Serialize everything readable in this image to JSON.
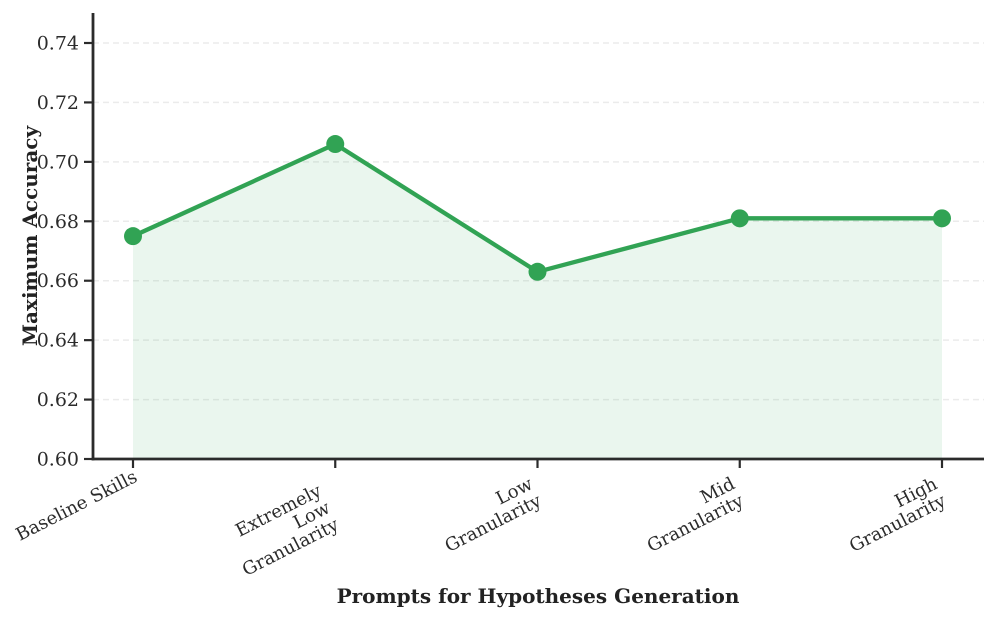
{
  "chart_data": {
    "type": "line",
    "title": "",
    "xlabel": "Prompts for Hypotheses Generation",
    "ylabel": "Maximum Accuracy",
    "categories": [
      "Baseline Skills",
      "Extremely Low Granularity",
      "Low Granularity",
      "Mid Granularity",
      "High Granularity"
    ],
    "category_label_lines": [
      [
        "Baseline Skills"
      ],
      [
        "Extremely",
        "Low",
        "Granularity"
      ],
      [
        "Low",
        "Granularity"
      ],
      [
        "Mid",
        "Granularity"
      ],
      [
        "High",
        "Granularity"
      ]
    ],
    "series": [
      {
        "name": "Maximum Accuracy",
        "values": [
          0.675,
          0.706,
          0.663,
          0.681,
          0.681
        ]
      }
    ],
    "ylim": [
      0.6,
      0.75
    ],
    "yticks": [
      0.6,
      0.62,
      0.64,
      0.66,
      0.68,
      0.7,
      0.72,
      0.74
    ],
    "ytick_format_decimals": 2,
    "grid": true,
    "grid_style": "dashed",
    "legend": false,
    "marker": "circle",
    "area_fill": true,
    "style": {
      "line_color": "#31a354",
      "marker_color": "#31a354",
      "fill_color": "rgba(49, 163, 84, 0.10)",
      "grid_color": "#ebebeb",
      "axis_color": "#2b2b2b",
      "tick_text_color": "#2b2b2b",
      "label_text_color": "#222222",
      "background": "#ffffff"
    }
  }
}
